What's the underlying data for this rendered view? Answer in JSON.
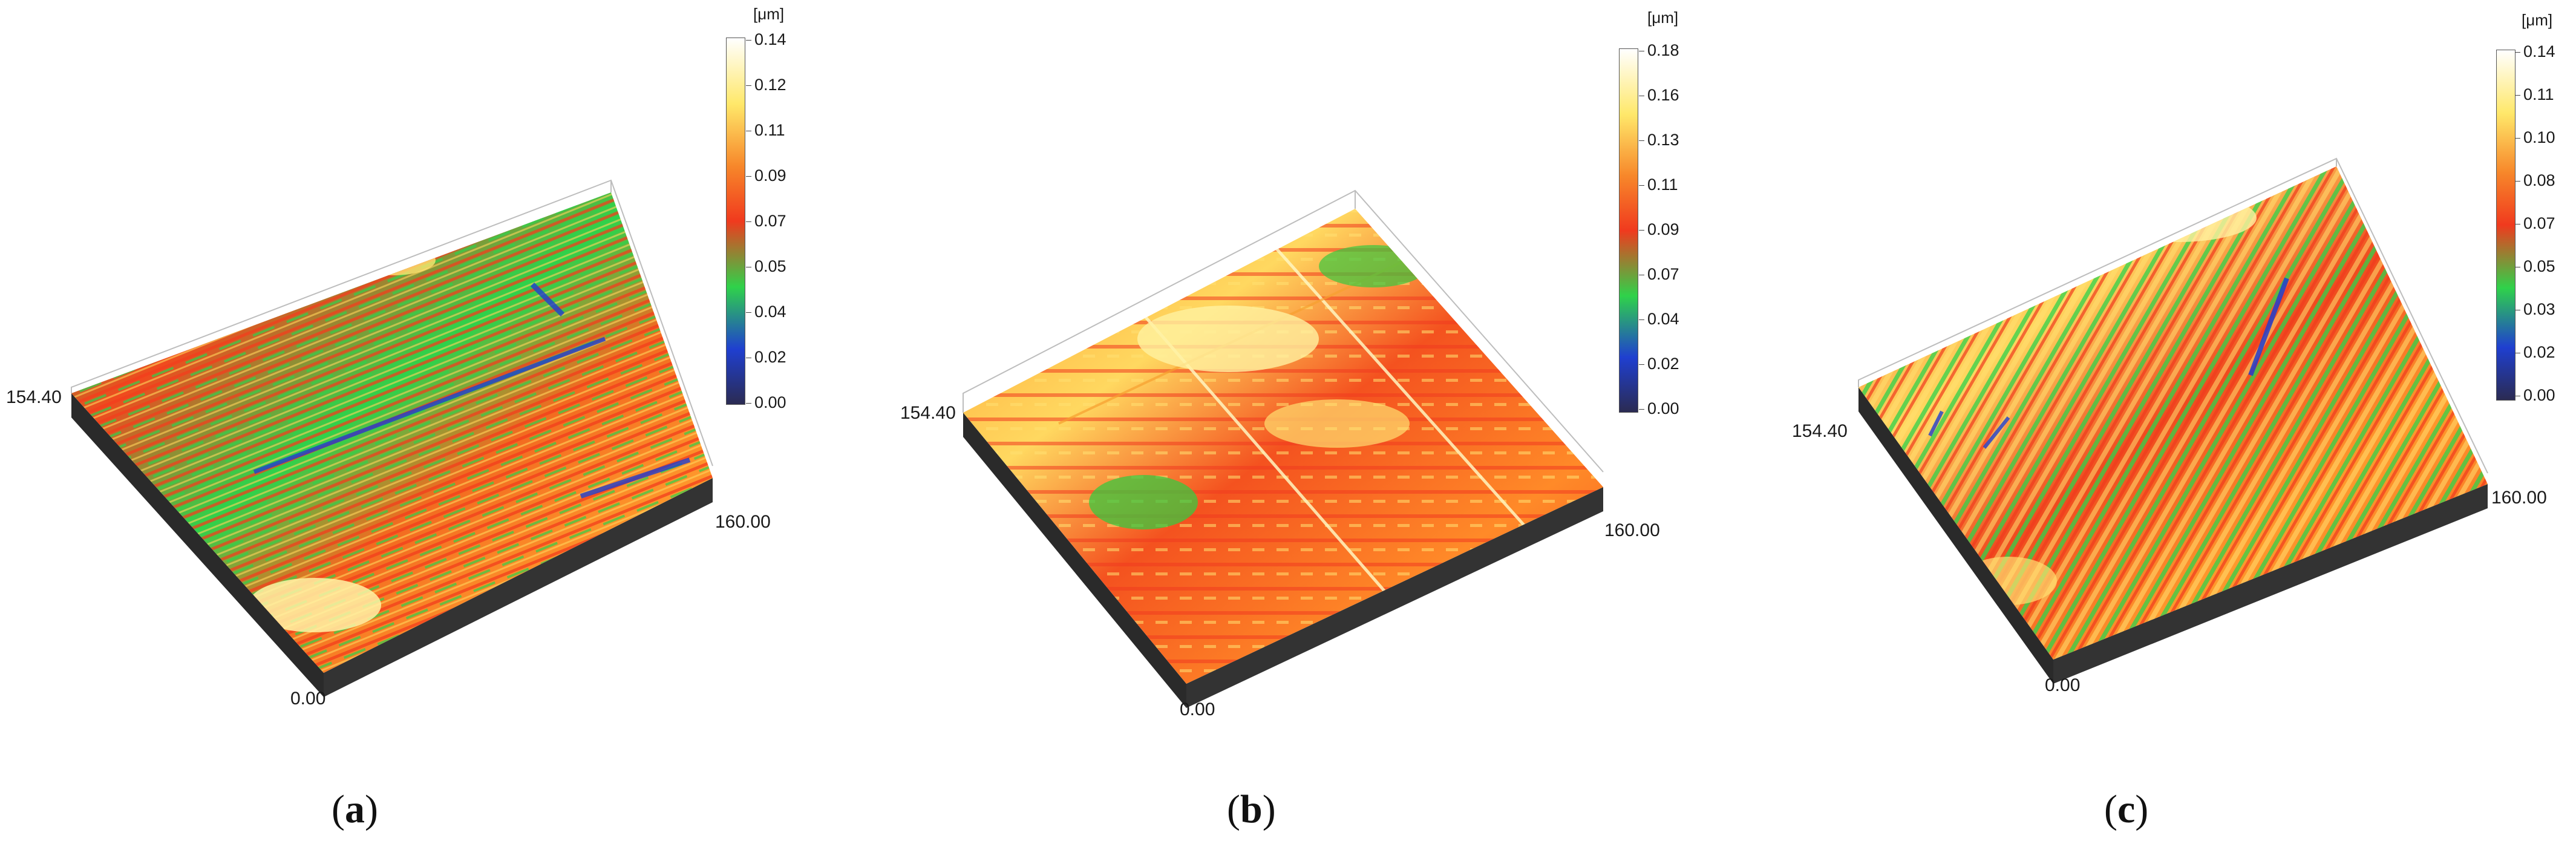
{
  "panels": [
    {
      "caption_letter": "a",
      "unit": "[μm]",
      "colorbar_ticks": [
        "0.14",
        "0.12",
        "0.11",
        "0.09",
        "0.07",
        "0.05",
        "0.04",
        "0.02",
        "0.00"
      ],
      "axis_y_label": "154.40",
      "axis_x_label": "160.00",
      "origin_label": "0.00",
      "texture": "horizontal streaks"
    },
    {
      "caption_letter": "b",
      "unit": "[μm]",
      "colorbar_ticks": [
        "0.18",
        "0.16",
        "0.13",
        "0.11",
        "0.09",
        "0.07",
        "0.04",
        "0.02",
        "0.00"
      ],
      "axis_y_label": "154.40",
      "axis_x_label": "160.00",
      "origin_label": "0.00",
      "texture": "grid scratches"
    },
    {
      "caption_letter": "c",
      "unit": "[μm]",
      "colorbar_ticks": [
        "0.14",
        "0.11",
        "0.10",
        "0.08",
        "0.07",
        "0.05",
        "0.03",
        "0.02",
        "0.00"
      ],
      "axis_y_label": "154.40",
      "axis_x_label": "160.00",
      "origin_label": "0.00",
      "texture": "diagonal streaks"
    }
  ],
  "colors": {
    "colormap": [
      "#2b2b52",
      "#1f3fd0",
      "#2fd24a",
      "#f03a1e",
      "#f7872a",
      "#ffe86a",
      "#ffffff"
    ],
    "base": "#2a2a2a"
  }
}
